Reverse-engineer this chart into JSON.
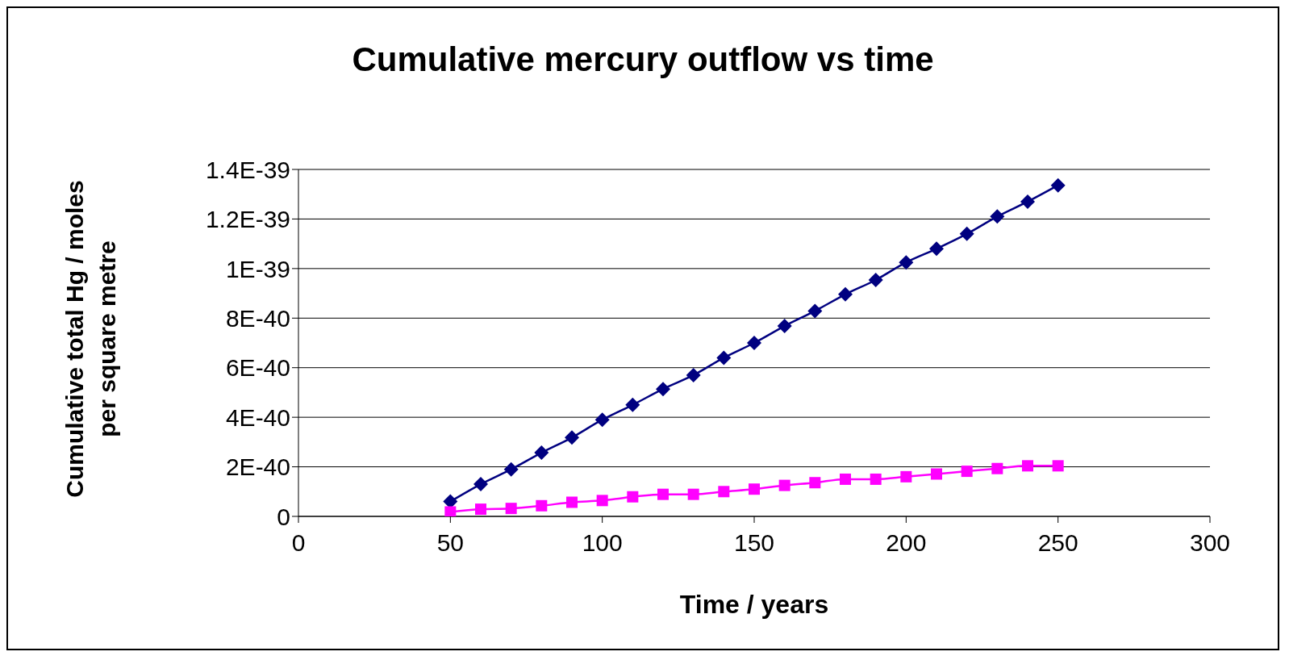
{
  "chart_data": {
    "type": "line",
    "title": "Cumulative mercury outflow vs time",
    "xlabel": "Time / years",
    "ylabel": "Cumulative total Hg / moles per square metre",
    "x": [
      50,
      60,
      70,
      80,
      90,
      100,
      110,
      120,
      130,
      140,
      150,
      160,
      170,
      180,
      190,
      200,
      210,
      220,
      230,
      240,
      250
    ],
    "series": [
      {
        "color": "#000080",
        "marker": "diamond",
        "values": [
          6e-41,
          1.3e-40,
          1.9e-40,
          2.57e-40,
          3.18e-40,
          3.9e-40,
          4.5e-40,
          5.14e-40,
          5.7e-40,
          6.4e-40,
          7e-40,
          7.68e-40,
          8.29e-40,
          8.96e-40,
          9.54e-40,
          1.025e-39,
          1.08e-39,
          1.14e-39,
          1.21e-39,
          1.27e-39,
          1.336e-39
        ]
      },
      {
        "color": "#ff00ff",
        "marker": "square",
        "values": [
          1.8e-41,
          2.9e-41,
          3.2e-41,
          4.3e-41,
          5.7e-41,
          6.4e-41,
          7.9e-41,
          8.9e-41,
          8.9e-41,
          1e-40,
          1.1e-40,
          1.25e-40,
          1.36e-40,
          1.5e-40,
          1.5e-40,
          1.6e-40,
          1.71e-40,
          1.82e-40,
          1.93e-40,
          2.04e-40,
          2.04e-40
        ]
      }
    ],
    "xlim": [
      0,
      300
    ],
    "xticks": [
      0,
      50,
      100,
      150,
      200,
      250,
      300
    ],
    "ylim": [
      0,
      1.4e-39
    ],
    "yticks": [
      {
        "value": 0,
        "label": "0"
      },
      {
        "value": 2e-40,
        "label": "2E-40"
      },
      {
        "value": 4e-40,
        "label": "4E-40"
      },
      {
        "value": 6e-40,
        "label": "6E-40"
      },
      {
        "value": 8e-40,
        "label": "8E-40"
      },
      {
        "value": 1e-39,
        "label": "1E-39"
      },
      {
        "value": 1.2e-39,
        "label": "1.2E-39"
      },
      {
        "value": 1.4e-39,
        "label": "1.4E-39"
      }
    ],
    "grid": "y",
    "legend": false,
    "line_style": "solid"
  }
}
